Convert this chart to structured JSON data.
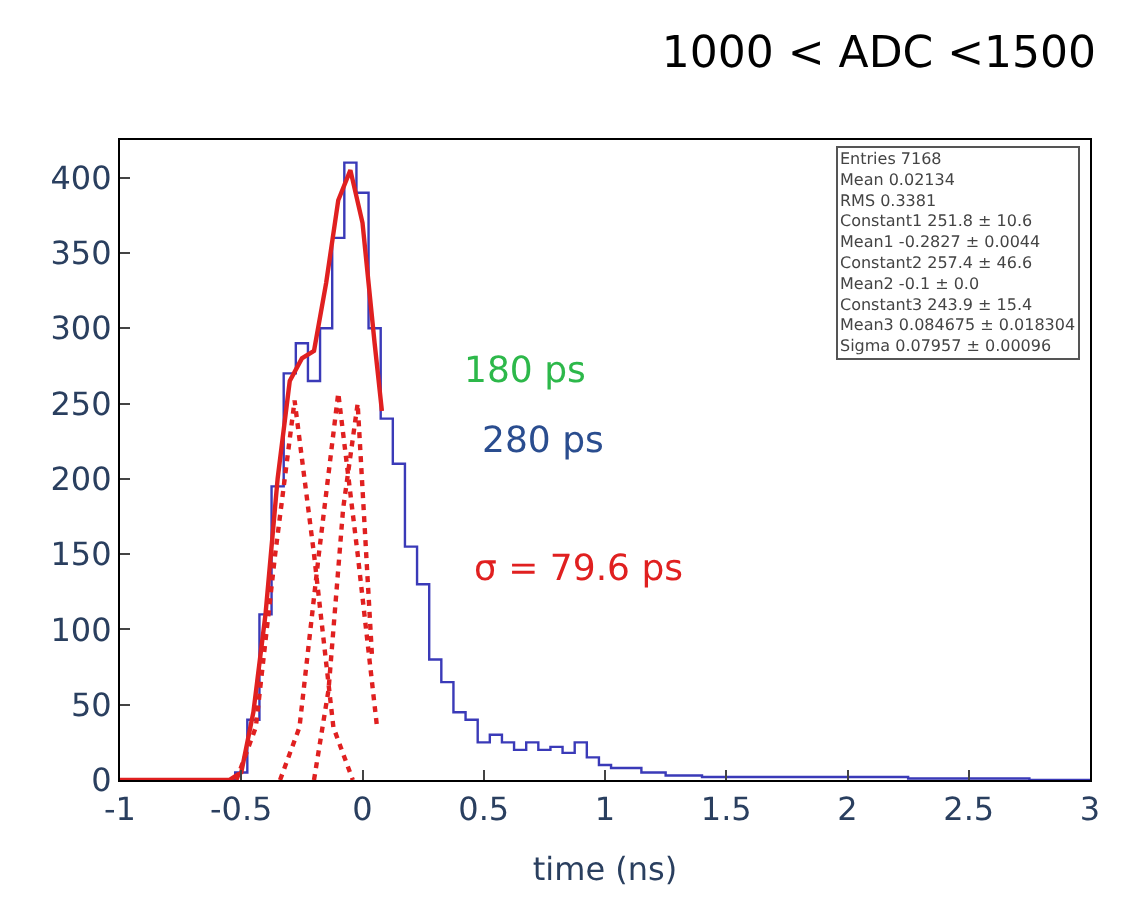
{
  "chart_data": {
    "type": "step",
    "title": "1000 < ADC <1500",
    "xlabel": "time (ns)",
    "xlim": [
      -1,
      3
    ],
    "xticks": [
      -1,
      -0.5,
      0,
      0.5,
      1,
      1.5,
      2,
      2.5,
      3
    ],
    "ylim": [
      0,
      425
    ],
    "yticks": [
      0,
      50,
      100,
      150,
      200,
      250,
      300,
      350,
      400
    ],
    "series": [
      {
        "color": "#3a3ab8",
        "x": [
          -1,
          -0.6,
          -0.55,
          -0.5,
          -0.45,
          -0.4,
          -0.35,
          -0.3,
          -0.25,
          -0.2,
          -0.15,
          -0.1,
          -0.05,
          0,
          0.05,
          0.1,
          0.15,
          0.2,
          0.25,
          0.3,
          0.35,
          0.4,
          0.45,
          0.5,
          0.55,
          0.6,
          0.65,
          0.7,
          0.75,
          0.8,
          0.85,
          0.9,
          0.95,
          1.0,
          1.05,
          1.1,
          1.2,
          1.3,
          1.5,
          2,
          2.5,
          3
        ],
        "values": [
          0,
          0,
          0,
          5,
          40,
          110,
          195,
          270,
          290,
          265,
          300,
          360,
          410,
          390,
          300,
          240,
          210,
          155,
          130,
          80,
          65,
          45,
          40,
          25,
          30,
          25,
          20,
          25,
          20,
          22,
          18,
          25,
          15,
          10,
          8,
          8,
          5,
          3,
          2,
          2,
          1,
          0
        ]
      },
      {
        "type": "line",
        "color": "#e02020",
        "line_style": "solid",
        "x": [
          -1,
          -0.55,
          -0.5,
          -0.45,
          -0.4,
          -0.35,
          -0.3,
          -0.25,
          -0.2,
          -0.15,
          -0.1,
          -0.05,
          0,
          0.05,
          0.08
        ],
        "values": [
          0,
          0,
          5,
          45,
          110,
          200,
          265,
          280,
          285,
          330,
          385,
          405,
          370,
          290,
          245
        ]
      },
      {
        "type": "line",
        "color": "#e02020",
        "line_style": "dotted",
        "x": [
          -0.52,
          -0.44,
          -0.36,
          -0.28,
          -0.2,
          -0.12,
          -0.04
        ],
        "values": [
          0,
          35,
          150,
          252,
          150,
          35,
          0
        ]
      },
      {
        "type": "line",
        "color": "#e02020",
        "line_style": "dotted",
        "x": [
          -0.34,
          -0.26,
          -0.18,
          -0.1,
          -0.02,
          0.06
        ],
        "values": [
          0,
          35,
          150,
          257,
          150,
          35
        ]
      },
      {
        "type": "line",
        "color": "#e02020",
        "line_style": "dotted",
        "x": [
          -0.2,
          -0.14,
          -0.08,
          -0.02,
          0.04
        ],
        "values": [
          0,
          60,
          180,
          250,
          80
        ]
      }
    ],
    "annotations": [
      "180 ps",
      "280 ps",
      "σ = 79.6 ps",
      "Entries 7168\nMean 0.02134\nRMS 0.3381\nConstant1 251.8 ± 10.6\nMean1 -0.2827 ± 0.0044\nConstant2 257.4 ± 46.6\nMean2 -0.1 ± 0.0\nConstant3 243.9 ± 15.4\nMean3 0.084675 ± 0.018304\nSigma 0.07957 ± 0.00096"
    ]
  }
}
